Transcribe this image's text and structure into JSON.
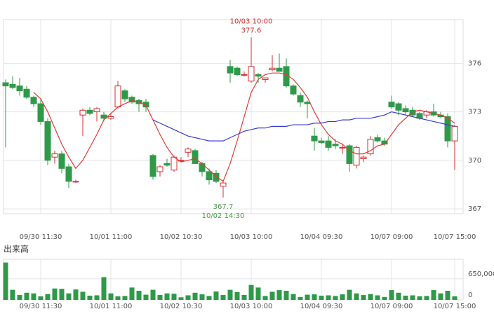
{
  "chart_data": [
    {
      "type": "candlestick",
      "categories": [
        null,
        null,
        null,
        null,
        null,
        "09/30 11:30",
        null,
        null,
        null,
        null,
        null,
        null,
        null,
        null,
        null,
        "10/01 11:00",
        null,
        null,
        null,
        null,
        null,
        null,
        null,
        null,
        null,
        "10/02 10:30",
        null,
        null,
        null,
        null,
        null,
        null,
        null,
        null,
        null,
        "10/03 10:00",
        null,
        null,
        null,
        null,
        null,
        null,
        null,
        null,
        null,
        "10/04 09:30",
        null,
        null,
        null,
        null,
        null,
        null,
        null,
        null,
        null,
        "10/07 09:00",
        null,
        null,
        null,
        null,
        null,
        null,
        null,
        null,
        "10/07 15:00"
      ],
      "open": [
        374.8,
        374.7,
        374.6,
        374.4,
        373.9,
        373.5,
        372.4,
        370.2,
        370.4,
        369.6,
        368.7,
        372.8,
        373.1,
        373.0,
        372.8,
        372.6,
        373.3,
        374.3,
        373.9,
        373.7,
        373.6,
        370.3,
        369.3,
        369.8,
        369.4,
        370.0,
        370.5,
        370.6,
        369.8,
        369.3,
        369.2,
        368.4,
        375.8,
        375.7,
        375.3,
        374.9,
        375.3,
        375.0,
        375.6,
        375.7,
        375.8,
        374.6,
        374.0,
        373.6,
        371.5,
        371.2,
        371.2,
        371.0,
        370.8,
        370.9,
        369.7,
        370.1,
        370.4,
        371.4,
        371.2,
        373.6,
        373.5,
        373.2,
        373.1,
        372.9,
        372.8,
        373.0,
        372.8,
        372.7,
        371.2
      ],
      "high": [
        375.0,
        375.2,
        375.1,
        374.6,
        374.0,
        373.8,
        372.6,
        370.6,
        370.6,
        369.8,
        368.8,
        373.2,
        373.3,
        373.3,
        373.0,
        372.9,
        374.9,
        374.4,
        374.0,
        373.8,
        373.8,
        370.4,
        369.7,
        370.1,
        370.3,
        370.2,
        370.8,
        370.7,
        369.9,
        369.5,
        369.4,
        368.8,
        376.2,
        375.8,
        375.5,
        377.6,
        375.4,
        375.1,
        376.5,
        376.6,
        376.3,
        374.7,
        374.2,
        373.7,
        372.0,
        371.4,
        371.5,
        371.3,
        371.0,
        371.0,
        370.9,
        370.3,
        371.5,
        371.6,
        371.4,
        374.0,
        373.6,
        373.4,
        373.3,
        373.0,
        373.1,
        373.5,
        373.0,
        372.9,
        372.2
      ],
      "low": [
        370.8,
        374.4,
        374.0,
        373.8,
        373.3,
        372.2,
        369.7,
        369.8,
        369.2,
        368.3,
        368.6,
        371.5,
        372.8,
        372.4,
        372.4,
        372.5,
        373.2,
        373.6,
        373.5,
        373.0,
        373.0,
        368.8,
        369.0,
        369.6,
        369.3,
        369.9,
        370.2,
        369.8,
        369.0,
        368.5,
        368.6,
        367.7,
        374.8,
        375.2,
        375.2,
        374.8,
        374.8,
        374.8,
        375.5,
        375.5,
        374.5,
        374.0,
        373.3,
        372.6,
        370.6,
        371.0,
        370.6,
        370.7,
        370.4,
        369.3,
        369.5,
        369.9,
        370.3,
        371.1,
        370.9,
        373.2,
        372.8,
        372.8,
        372.7,
        372.5,
        372.6,
        372.7,
        372.6,
        370.8,
        369.4
      ],
      "close": [
        374.6,
        374.5,
        374.3,
        373.9,
        373.5,
        372.4,
        370.0,
        370.4,
        369.5,
        368.7,
        368.7,
        373.1,
        372.9,
        373.2,
        372.6,
        372.7,
        374.6,
        373.8,
        373.6,
        373.5,
        373.3,
        369.0,
        369.6,
        369.7,
        370.2,
        370.0,
        370.7,
        369.8,
        369.3,
        368.8,
        368.7,
        368.6,
        375.4,
        375.3,
        375.3,
        375.8,
        375.2,
        375.1,
        375.7,
        375.5,
        374.6,
        374.1,
        373.6,
        373.5,
        371.2,
        371.1,
        370.8,
        370.9,
        370.8,
        369.8,
        370.8,
        370.2,
        371.3,
        371.2,
        371.0,
        373.3,
        373.1,
        373.0,
        372.8,
        372.6,
        373.0,
        372.8,
        372.7,
        371.2,
        372.1
      ],
      "ma_short": [
        null,
        null,
        null,
        null,
        374.2,
        373.8,
        373.0,
        372.0,
        371.0,
        370.2,
        369.5,
        370.0,
        370.8,
        371.6,
        372.5,
        372.9,
        373.3,
        373.5,
        373.7,
        373.6,
        373.4,
        372.5,
        371.6,
        370.8,
        370.2,
        369.9,
        370.0,
        370.1,
        369.8,
        369.4,
        369.0,
        368.7,
        369.8,
        371.2,
        372.7,
        374.2,
        375.0,
        375.3,
        375.4,
        375.4,
        375.3,
        375.0,
        374.5,
        373.9,
        373.0,
        372.2,
        371.6,
        371.2,
        371.0,
        370.6,
        370.4,
        370.4,
        370.6,
        370.9,
        371.0,
        371.6,
        372.2,
        372.6,
        373.0,
        373.1,
        373.0,
        372.9,
        372.8,
        372.6,
        372.3
      ],
      "ma_long": [
        null,
        null,
        null,
        null,
        null,
        null,
        null,
        null,
        null,
        null,
        null,
        null,
        null,
        null,
        null,
        null,
        null,
        null,
        null,
        null,
        null,
        372.5,
        372.3,
        372.1,
        371.9,
        371.7,
        371.5,
        371.4,
        371.3,
        371.2,
        371.2,
        371.2,
        371.4,
        371.6,
        371.8,
        371.9,
        372.0,
        372.0,
        372.1,
        372.1,
        372.1,
        372.2,
        372.2,
        372.2,
        372.3,
        372.3,
        372.4,
        372.4,
        372.5,
        372.5,
        372.6,
        372.6,
        372.6,
        372.7,
        372.8,
        373.0,
        372.9,
        372.8,
        372.7,
        372.6,
        372.5,
        372.4,
        372.3,
        372.2,
        372.1
      ],
      "up_color": "#d32f2f",
      "down_color": "#2e9a48",
      "ma_short_color": "#e53935",
      "ma_long_color": "#3a3ad0",
      "ylim": [
        366.7,
        378.7
      ],
      "yticks": [
        367,
        370,
        373,
        376
      ],
      "grid": true,
      "annotations": [
        {
          "time": "10/03 10:00",
          "value": 377.6,
          "label": "377.6",
          "color": "#d32f2f",
          "at": "high"
        },
        {
          "time": "10/02 14:30",
          "value": 367.7,
          "label": "367.7",
          "color": "#4c9a4c",
          "at": "low"
        }
      ]
    },
    {
      "type": "bar",
      "title": "出来高",
      "values": [
        1150000,
        310000,
        150000,
        220000,
        200000,
        110000,
        180000,
        350000,
        340000,
        200000,
        320000,
        250000,
        130000,
        140000,
        700000,
        200000,
        110000,
        120000,
        380000,
        280000,
        160000,
        310000,
        150000,
        200000,
        190000,
        80000,
        140000,
        220000,
        170000,
        120000,
        260000,
        150000,
        310000,
        240000,
        150000,
        460000,
        380000,
        120000,
        250000,
        300000,
        280000,
        180000,
        90000,
        160000,
        170000,
        130000,
        140000,
        120000,
        170000,
        310000,
        200000,
        150000,
        180000,
        140000,
        90000,
        300000,
        220000,
        130000,
        140000,
        110000,
        120000,
        300000,
        200000,
        280000,
        110000
      ],
      "color": "#2e9a48",
      "ylim": [
        0,
        1250000
      ],
      "yticks": [
        0,
        {
          "value": 650000,
          "label": "650,000"
        }
      ],
      "grid": true
    }
  ]
}
